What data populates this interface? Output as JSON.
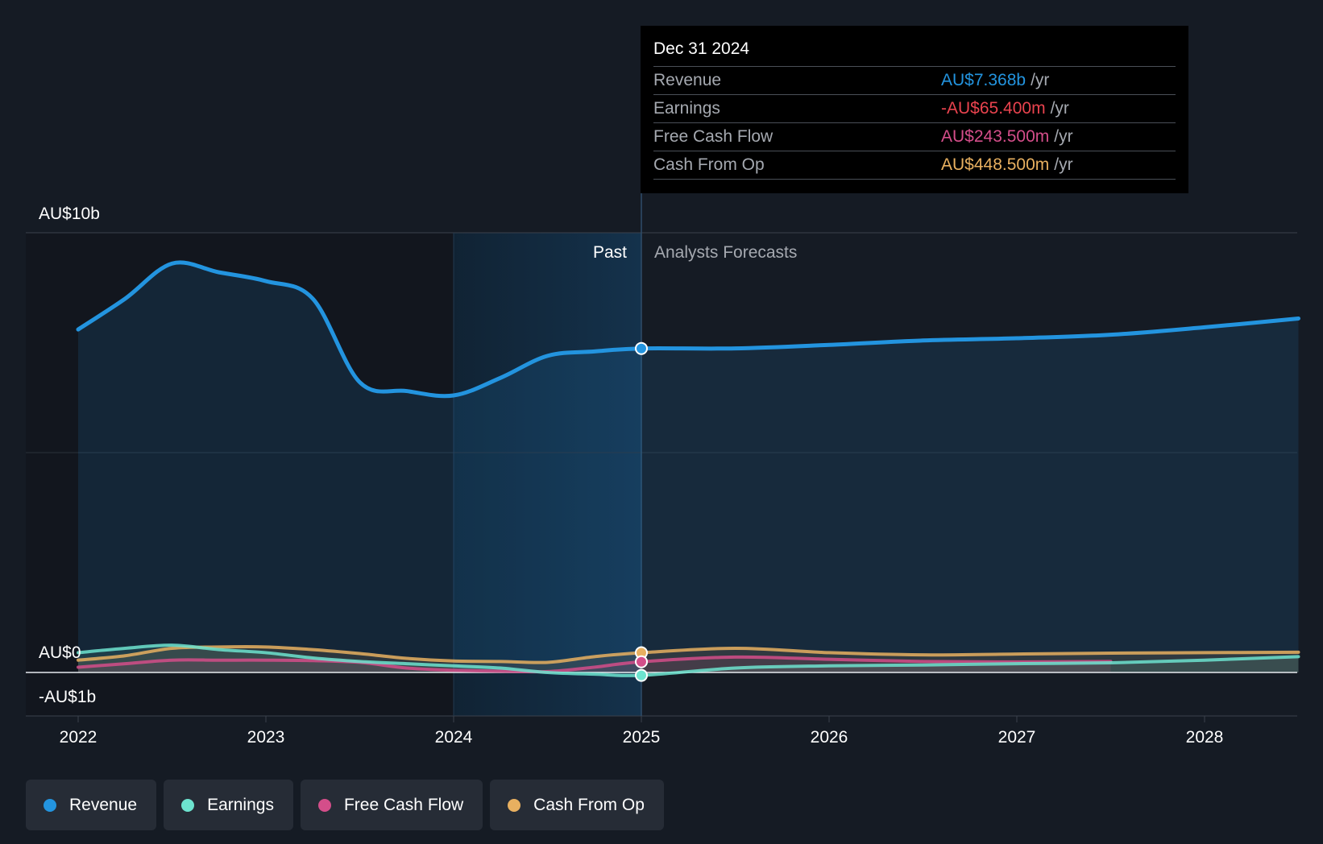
{
  "chart_data": {
    "type": "line",
    "currency": "AU$",
    "y_axis_labels": [
      "AU$10b",
      "AU$0",
      "-AU$1b"
    ],
    "ylim": [
      -1,
      10
    ],
    "x_tick_labels": [
      "2022",
      "2023",
      "2024",
      "2025",
      "2026",
      "2027",
      "2028"
    ],
    "xlim": [
      2022,
      2028.5
    ],
    "past_label": "Past",
    "forecast_label": "Analysts Forecasts",
    "divider_x": 2025,
    "past_shade_start": 2024,
    "series": [
      {
        "name": "Revenue",
        "color": "#2394df",
        "points": [
          [
            2022,
            7.8
          ],
          [
            2022.25,
            8.5
          ],
          [
            2022.5,
            9.3
          ],
          [
            2022.75,
            9.1
          ],
          [
            2023,
            8.9
          ],
          [
            2023.25,
            8.5
          ],
          [
            2023.5,
            6.6
          ],
          [
            2023.75,
            6.4
          ],
          [
            2024,
            6.3
          ],
          [
            2024.25,
            6.7
          ],
          [
            2024.5,
            7.2
          ],
          [
            2024.75,
            7.3
          ],
          [
            2025,
            7.368
          ],
          [
            2025.5,
            7.37
          ],
          [
            2026,
            7.45
          ],
          [
            2026.5,
            7.55
          ],
          [
            2027,
            7.6
          ],
          [
            2027.5,
            7.68
          ],
          [
            2028,
            7.85
          ],
          [
            2028.5,
            8.05
          ]
        ]
      },
      {
        "name": "Earnings",
        "color": "#6de3cf",
        "points": [
          [
            2022,
            0.45
          ],
          [
            2022.25,
            0.55
          ],
          [
            2022.5,
            0.62
          ],
          [
            2022.75,
            0.52
          ],
          [
            2023,
            0.45
          ],
          [
            2023.25,
            0.33
          ],
          [
            2023.5,
            0.25
          ],
          [
            2023.75,
            0.2
          ],
          [
            2024,
            0.15
          ],
          [
            2024.25,
            0.1
          ],
          [
            2024.5,
            0.0
          ],
          [
            2024.75,
            -0.04
          ],
          [
            2025,
            -0.0654
          ],
          [
            2025.5,
            0.1
          ],
          [
            2026,
            0.15
          ],
          [
            2026.5,
            0.17
          ],
          [
            2027,
            0.2
          ],
          [
            2027.5,
            0.22
          ],
          [
            2028,
            0.28
          ],
          [
            2028.5,
            0.36
          ]
        ]
      },
      {
        "name": "Free Cash Flow",
        "color": "#d44e8a",
        "points": [
          [
            2022,
            0.12
          ],
          [
            2022.25,
            0.2
          ],
          [
            2022.5,
            0.28
          ],
          [
            2022.75,
            0.28
          ],
          [
            2023,
            0.28
          ],
          [
            2023.25,
            0.27
          ],
          [
            2023.5,
            0.23
          ],
          [
            2023.75,
            0.1
          ],
          [
            2024,
            0.05
          ],
          [
            2024.25,
            0.03
          ],
          [
            2024.5,
            0.02
          ],
          [
            2024.75,
            0.12
          ],
          [
            2025,
            0.2435
          ],
          [
            2025.5,
            0.35
          ],
          [
            2026,
            0.3
          ],
          [
            2026.5,
            0.25
          ],
          [
            2027,
            0.24
          ],
          [
            2027.5,
            0.25
          ]
        ]
      },
      {
        "name": "Cash From Op",
        "color": "#e8b060",
        "points": [
          [
            2022,
            0.28
          ],
          [
            2022.25,
            0.38
          ],
          [
            2022.5,
            0.55
          ],
          [
            2022.75,
            0.58
          ],
          [
            2023,
            0.58
          ],
          [
            2023.25,
            0.52
          ],
          [
            2023.5,
            0.43
          ],
          [
            2023.75,
            0.32
          ],
          [
            2024,
            0.26
          ],
          [
            2024.25,
            0.25
          ],
          [
            2024.5,
            0.23
          ],
          [
            2024.75,
            0.36
          ],
          [
            2025,
            0.4485
          ],
          [
            2025.5,
            0.55
          ],
          [
            2026,
            0.45
          ],
          [
            2026.5,
            0.4
          ],
          [
            2027,
            0.42
          ],
          [
            2027.5,
            0.44
          ],
          [
            2028,
            0.45
          ],
          [
            2028.5,
            0.46
          ]
        ]
      }
    ],
    "highlight_x": 2025
  },
  "tooltip": {
    "date": "Dec 31 2024",
    "rows": [
      {
        "label": "Revenue",
        "value": "AU$7.368b",
        "unit": "/yr",
        "color": "#2394df"
      },
      {
        "label": "Earnings",
        "value": "-AU$65.400m",
        "unit": "/yr",
        "color": "#e9434e"
      },
      {
        "label": "Free Cash Flow",
        "value": "AU$243.500m",
        "unit": "/yr",
        "color": "#d44e8a"
      },
      {
        "label": "Cash From Op",
        "value": "AU$448.500m",
        "unit": "/yr",
        "color": "#e8b060"
      }
    ]
  },
  "legend": [
    {
      "label": "Revenue",
      "color": "#2394df"
    },
    {
      "label": "Earnings",
      "color": "#6de3cf"
    },
    {
      "label": "Free Cash Flow",
      "color": "#d44e8a"
    },
    {
      "label": "Cash From Op",
      "color": "#e8b060"
    }
  ]
}
